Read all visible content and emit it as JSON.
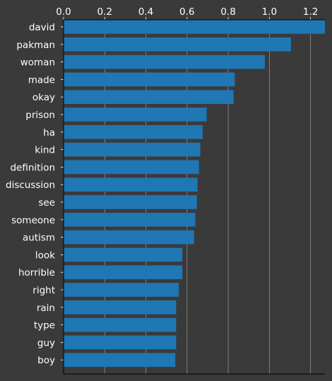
{
  "chart_data": {
    "type": "bar",
    "orientation": "horizontal",
    "xaxis_position": "top",
    "grid": true,
    "xlim": [
      0,
      1.27
    ],
    "xticks": [
      "0.0",
      "0.2",
      "0.4",
      "0.6",
      "0.8",
      "1.0",
      "1.2"
    ],
    "categories": [
      "david",
      "pakman",
      "woman",
      "made",
      "okay",
      "prison",
      "ha",
      "kind",
      "definition",
      "discussion",
      "see",
      "someone",
      "autism",
      "look",
      "horrible",
      "right",
      "rain",
      "type",
      "guy",
      "boy"
    ],
    "values": [
      1.27,
      1.105,
      0.978,
      0.832,
      0.826,
      0.695,
      0.676,
      0.664,
      0.658,
      0.651,
      0.648,
      0.64,
      0.634,
      0.577,
      0.577,
      0.56,
      0.547,
      0.547,
      0.547,
      0.543
    ],
    "colors": {
      "background": "#3b3a3a",
      "bar": "#1f77b4",
      "grid": "#8f8f8f",
      "axis": "#000000",
      "text": "#ffffff"
    }
  }
}
